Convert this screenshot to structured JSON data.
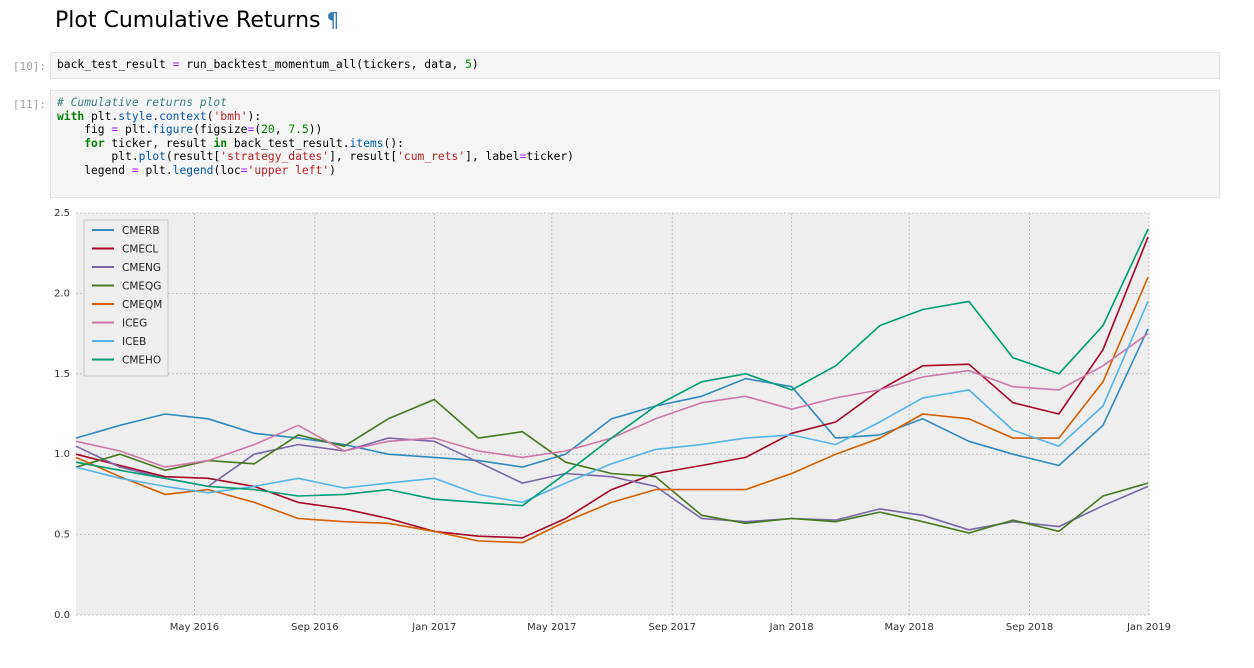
{
  "heading": {
    "title": "Plot Cumulative Returns",
    "anchor": "¶"
  },
  "cells": [
    {
      "prompt": "[10]:",
      "lines": [
        [
          [
            "",
            "back_test_result "
          ],
          [
            "op",
            "="
          ],
          [
            "",
            " run_backtest_momentum_all(tickers, data, "
          ],
          [
            "num",
            "5"
          ],
          [
            "",
            ")"
          ]
        ]
      ]
    },
    {
      "prompt": "[11]:",
      "lines": [
        [
          [
            "com",
            "# Cumulative returns plot"
          ]
        ],
        [
          [
            "kw",
            "with"
          ],
          [
            "",
            " plt"
          ],
          [
            "",
            "."
          ],
          [
            "attr",
            "style"
          ],
          [
            "",
            "."
          ],
          [
            "attr",
            "context"
          ],
          [
            "",
            "("
          ],
          [
            "str",
            "'bmh'"
          ],
          [
            "",
            "):"
          ]
        ],
        [
          [
            "",
            "    fig "
          ],
          [
            "op",
            "="
          ],
          [
            "",
            " plt"
          ],
          [
            "",
            "."
          ],
          [
            "attr",
            "figure"
          ],
          [
            "",
            "(figsize"
          ],
          [
            "op",
            "="
          ],
          [
            "",
            "("
          ],
          [
            "num",
            "20"
          ],
          [
            "",
            ", "
          ],
          [
            "num",
            "7.5"
          ],
          [
            "",
            "))"
          ]
        ],
        [
          [
            "",
            "    "
          ],
          [
            "kw",
            "for"
          ],
          [
            "",
            " ticker, result "
          ],
          [
            "kw",
            "in"
          ],
          [
            "",
            " back_test_result"
          ],
          [
            "",
            "."
          ],
          [
            "attr",
            "items"
          ],
          [
            "",
            "():"
          ]
        ],
        [
          [
            "",
            "        plt"
          ],
          [
            "",
            "."
          ],
          [
            "attr",
            "plot"
          ],
          [
            "",
            "(result["
          ],
          [
            "str",
            "'strategy_dates'"
          ],
          [
            "",
            "], result["
          ],
          [
            "str",
            "'cum_rets'"
          ],
          [
            "",
            "], label"
          ],
          [
            "op",
            "="
          ],
          [
            "",
            "ticker)"
          ]
        ],
        [
          [
            "",
            "    legend "
          ],
          [
            "op",
            "="
          ],
          [
            "",
            " plt"
          ],
          [
            "",
            "."
          ],
          [
            "attr",
            "legend"
          ],
          [
            "",
            "(loc"
          ],
          [
            "op",
            "="
          ],
          [
            "str",
            "'upper left'"
          ],
          [
            "",
            ")"
          ]
        ]
      ]
    }
  ],
  "chart_data": {
    "type": "line",
    "x_range": [
      "2016-01-01",
      "2019-01-01"
    ],
    "ylim": [
      0.0,
      2.5
    ],
    "y_ticks": [
      "0.0",
      "0.5",
      "1.0",
      "1.5",
      "2.0",
      "2.5"
    ],
    "x_ticks": [
      {
        "date": "2016-05-01",
        "label": "May 2016"
      },
      {
        "date": "2016-09-01",
        "label": "Sep 2016"
      },
      {
        "date": "2017-01-01",
        "label": "Jan 2017"
      },
      {
        "date": "2017-05-01",
        "label": "May 2017"
      },
      {
        "date": "2017-09-01",
        "label": "Sep 2017"
      },
      {
        "date": "2018-01-01",
        "label": "Jan 2018"
      },
      {
        "date": "2018-05-01",
        "label": "May 2018"
      },
      {
        "date": "2018-09-01",
        "label": "Sep 2018"
      },
      {
        "date": "2019-01-01",
        "label": "Jan 2019"
      }
    ],
    "grid": true,
    "legend_position": "upper left",
    "series": [
      {
        "name": "CMERB",
        "color": "#348abd",
        "points": [
          [
            "2016-01-01",
            1.1
          ],
          [
            "2016-02-15",
            1.18
          ],
          [
            "2016-04-01",
            1.25
          ],
          [
            "2016-05-15",
            1.22
          ],
          [
            "2016-07-01",
            1.13
          ],
          [
            "2016-08-15",
            1.1
          ],
          [
            "2016-10-01",
            1.06
          ],
          [
            "2016-11-15",
            1.0
          ],
          [
            "2017-01-01",
            0.98
          ],
          [
            "2017-02-15",
            0.96
          ],
          [
            "2017-04-01",
            0.92
          ],
          [
            "2017-05-15",
            1.0
          ],
          [
            "2017-07-01",
            1.22
          ],
          [
            "2017-08-15",
            1.3
          ],
          [
            "2017-10-01",
            1.36
          ],
          [
            "2017-11-15",
            1.47
          ],
          [
            "2018-01-01",
            1.42
          ],
          [
            "2018-02-15",
            1.1
          ],
          [
            "2018-04-01",
            1.12
          ],
          [
            "2018-05-15",
            1.22
          ],
          [
            "2018-07-01",
            1.08
          ],
          [
            "2018-08-15",
            1.0
          ],
          [
            "2018-10-01",
            0.93
          ],
          [
            "2018-11-15",
            1.18
          ],
          [
            "2018-12-31",
            1.78
          ]
        ]
      },
      {
        "name": "CMECL",
        "color": "#a60628",
        "points": [
          [
            "2016-01-01",
            1.0
          ],
          [
            "2016-02-15",
            0.93
          ],
          [
            "2016-04-01",
            0.86
          ],
          [
            "2016-05-15",
            0.85
          ],
          [
            "2016-07-01",
            0.8
          ],
          [
            "2016-08-15",
            0.7
          ],
          [
            "2016-10-01",
            0.66
          ],
          [
            "2016-11-15",
            0.6
          ],
          [
            "2017-01-01",
            0.52
          ],
          [
            "2017-02-15",
            0.49
          ],
          [
            "2017-04-01",
            0.48
          ],
          [
            "2017-05-15",
            0.6
          ],
          [
            "2017-07-01",
            0.78
          ],
          [
            "2017-08-15",
            0.88
          ],
          [
            "2017-10-01",
            0.93
          ],
          [
            "2017-11-15",
            0.98
          ],
          [
            "2018-01-01",
            1.13
          ],
          [
            "2018-02-15",
            1.2
          ],
          [
            "2018-04-01",
            1.4
          ],
          [
            "2018-05-15",
            1.55
          ],
          [
            "2018-07-01",
            1.56
          ],
          [
            "2018-08-15",
            1.32
          ],
          [
            "2018-10-01",
            1.25
          ],
          [
            "2018-11-15",
            1.65
          ],
          [
            "2018-12-31",
            2.35
          ]
        ]
      },
      {
        "name": "CMENG",
        "color": "#7a68a6",
        "points": [
          [
            "2016-01-01",
            1.05
          ],
          [
            "2016-02-15",
            0.92
          ],
          [
            "2016-04-01",
            0.85
          ],
          [
            "2016-05-15",
            0.8
          ],
          [
            "2016-07-01",
            1.0
          ],
          [
            "2016-08-15",
            1.06
          ],
          [
            "2016-10-01",
            1.02
          ],
          [
            "2016-11-15",
            1.1
          ],
          [
            "2017-01-01",
            1.08
          ],
          [
            "2017-02-15",
            0.95
          ],
          [
            "2017-04-01",
            0.82
          ],
          [
            "2017-05-15",
            0.88
          ],
          [
            "2017-07-01",
            0.86
          ],
          [
            "2017-08-15",
            0.8
          ],
          [
            "2017-10-01",
            0.6
          ],
          [
            "2017-11-15",
            0.58
          ],
          [
            "2018-01-01",
            0.6
          ],
          [
            "2018-02-15",
            0.59
          ],
          [
            "2018-04-01",
            0.66
          ],
          [
            "2018-05-15",
            0.62
          ],
          [
            "2018-07-01",
            0.53
          ],
          [
            "2018-08-15",
            0.58
          ],
          [
            "2018-10-01",
            0.55
          ],
          [
            "2018-11-15",
            0.68
          ],
          [
            "2018-12-31",
            0.8
          ]
        ]
      },
      {
        "name": "CMEQG",
        "color": "#467821",
        "points": [
          [
            "2016-01-01",
            0.92
          ],
          [
            "2016-02-15",
            1.0
          ],
          [
            "2016-04-01",
            0.9
          ],
          [
            "2016-05-15",
            0.96
          ],
          [
            "2016-07-01",
            0.94
          ],
          [
            "2016-08-15",
            1.12
          ],
          [
            "2016-10-01",
            1.05
          ],
          [
            "2016-11-15",
            1.22
          ],
          [
            "2017-01-01",
            1.34
          ],
          [
            "2017-02-15",
            1.1
          ],
          [
            "2017-04-01",
            1.14
          ],
          [
            "2017-05-15",
            0.95
          ],
          [
            "2017-07-01",
            0.88
          ],
          [
            "2017-08-15",
            0.86
          ],
          [
            "2017-10-01",
            0.62
          ],
          [
            "2017-11-15",
            0.57
          ],
          [
            "2018-01-01",
            0.6
          ],
          [
            "2018-02-15",
            0.58
          ],
          [
            "2018-04-01",
            0.64
          ],
          [
            "2018-05-15",
            0.58
          ],
          [
            "2018-07-01",
            0.51
          ],
          [
            "2018-08-15",
            0.59
          ],
          [
            "2018-10-01",
            0.52
          ],
          [
            "2018-11-15",
            0.74
          ],
          [
            "2018-12-31",
            0.82
          ]
        ]
      },
      {
        "name": "CMEQM",
        "color": "#d55e00",
        "points": [
          [
            "2016-01-01",
            0.98
          ],
          [
            "2016-02-15",
            0.86
          ],
          [
            "2016-04-01",
            0.75
          ],
          [
            "2016-05-15",
            0.78
          ],
          [
            "2016-07-01",
            0.7
          ],
          [
            "2016-08-15",
            0.6
          ],
          [
            "2016-10-01",
            0.58
          ],
          [
            "2016-11-15",
            0.57
          ],
          [
            "2017-01-01",
            0.52
          ],
          [
            "2017-02-15",
            0.46
          ],
          [
            "2017-04-01",
            0.45
          ],
          [
            "2017-05-15",
            0.58
          ],
          [
            "2017-07-01",
            0.7
          ],
          [
            "2017-08-15",
            0.78
          ],
          [
            "2017-10-01",
            0.78
          ],
          [
            "2017-11-15",
            0.78
          ],
          [
            "2018-01-01",
            0.88
          ],
          [
            "2018-02-15",
            1.0
          ],
          [
            "2018-04-01",
            1.1
          ],
          [
            "2018-05-15",
            1.25
          ],
          [
            "2018-07-01",
            1.22
          ],
          [
            "2018-08-15",
            1.1
          ],
          [
            "2018-10-01",
            1.1
          ],
          [
            "2018-11-15",
            1.45
          ],
          [
            "2018-12-31",
            2.1
          ]
        ]
      },
      {
        "name": "ICEG",
        "color": "#cc79a7",
        "points": [
          [
            "2016-01-01",
            1.08
          ],
          [
            "2016-02-15",
            1.02
          ],
          [
            "2016-04-01",
            0.92
          ],
          [
            "2016-05-15",
            0.96
          ],
          [
            "2016-07-01",
            1.06
          ],
          [
            "2016-08-15",
            1.18
          ],
          [
            "2016-10-01",
            1.02
          ],
          [
            "2016-11-15",
            1.08
          ],
          [
            "2017-01-01",
            1.1
          ],
          [
            "2017-02-15",
            1.02
          ],
          [
            "2017-04-01",
            0.98
          ],
          [
            "2017-05-15",
            1.02
          ],
          [
            "2017-07-01",
            1.1
          ],
          [
            "2017-08-15",
            1.22
          ],
          [
            "2017-10-01",
            1.32
          ],
          [
            "2017-11-15",
            1.36
          ],
          [
            "2018-01-01",
            1.28
          ],
          [
            "2018-02-15",
            1.35
          ],
          [
            "2018-04-01",
            1.4
          ],
          [
            "2018-05-15",
            1.48
          ],
          [
            "2018-07-01",
            1.52
          ],
          [
            "2018-08-15",
            1.42
          ],
          [
            "2018-10-01",
            1.4
          ],
          [
            "2018-11-15",
            1.55
          ],
          [
            "2018-12-31",
            1.75
          ]
        ]
      },
      {
        "name": "ICEB",
        "color": "#56b4e9",
        "points": [
          [
            "2016-01-01",
            0.92
          ],
          [
            "2016-02-15",
            0.85
          ],
          [
            "2016-04-01",
            0.8
          ],
          [
            "2016-05-15",
            0.76
          ],
          [
            "2016-07-01",
            0.8
          ],
          [
            "2016-08-15",
            0.85
          ],
          [
            "2016-10-01",
            0.79
          ],
          [
            "2016-11-15",
            0.82
          ],
          [
            "2017-01-01",
            0.85
          ],
          [
            "2017-02-15",
            0.75
          ],
          [
            "2017-04-01",
            0.7
          ],
          [
            "2017-05-15",
            0.82
          ],
          [
            "2017-07-01",
            0.94
          ],
          [
            "2017-08-15",
            1.03
          ],
          [
            "2017-10-01",
            1.06
          ],
          [
            "2017-11-15",
            1.1
          ],
          [
            "2018-01-01",
            1.12
          ],
          [
            "2018-02-15",
            1.06
          ],
          [
            "2018-04-01",
            1.2
          ],
          [
            "2018-05-15",
            1.35
          ],
          [
            "2018-07-01",
            1.4
          ],
          [
            "2018-08-15",
            1.15
          ],
          [
            "2018-10-01",
            1.05
          ],
          [
            "2018-11-15",
            1.3
          ],
          [
            "2018-12-31",
            1.95
          ]
        ]
      },
      {
        "name": "CMEHO",
        "color": "#009e73",
        "points": [
          [
            "2016-01-01",
            0.95
          ],
          [
            "2016-02-15",
            0.9
          ],
          [
            "2016-04-01",
            0.85
          ],
          [
            "2016-05-15",
            0.8
          ],
          [
            "2016-07-01",
            0.78
          ],
          [
            "2016-08-15",
            0.74
          ],
          [
            "2016-10-01",
            0.75
          ],
          [
            "2016-11-15",
            0.78
          ],
          [
            "2017-01-01",
            0.72
          ],
          [
            "2017-02-15",
            0.7
          ],
          [
            "2017-04-01",
            0.68
          ],
          [
            "2017-05-15",
            0.88
          ],
          [
            "2017-07-01",
            1.1
          ],
          [
            "2017-08-15",
            1.3
          ],
          [
            "2017-10-01",
            1.45
          ],
          [
            "2017-11-15",
            1.5
          ],
          [
            "2018-01-01",
            1.4
          ],
          [
            "2018-02-15",
            1.55
          ],
          [
            "2018-04-01",
            1.8
          ],
          [
            "2018-05-15",
            1.9
          ],
          [
            "2018-07-01",
            1.95
          ],
          [
            "2018-08-15",
            1.6
          ],
          [
            "2018-10-01",
            1.5
          ],
          [
            "2018-11-15",
            1.8
          ],
          [
            "2018-12-31",
            2.4
          ]
        ]
      }
    ]
  }
}
